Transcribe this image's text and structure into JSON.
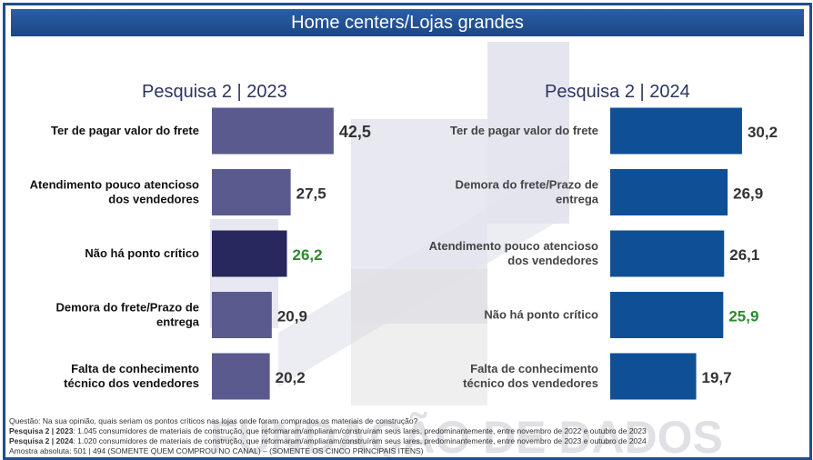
{
  "title": "Home centers/Lojas grandes",
  "watermark_text": "FUNDAÇÃO DE DADOS",
  "colors": {
    "bar_2023": "#5a5a8e",
    "bar_2023_highlight": "#28285e",
    "bar_2024": "#0f4f96",
    "value_text": "#333333",
    "value_highlight": "#2e8b2e",
    "title_bar": "#1f4e8c"
  },
  "chart_data": [
    {
      "type": "bar",
      "orientation": "horizontal",
      "title": "Pesquisa 2 | 2023",
      "categories": [
        "Ter de pagar valor do frete",
        "Atendimento pouco atencioso dos vendedores",
        "Não há ponto crítico",
        "Demora do frete/Prazo de entrega",
        "Falta de conhecimento técnico dos vendedores"
      ],
      "values": [
        42.5,
        27.5,
        26.2,
        20.9,
        20.2
      ],
      "labels": [
        "42,5",
        "27,5",
        "26,2",
        "20,9",
        "20,2"
      ],
      "highlight_index": 2
    },
    {
      "type": "bar",
      "orientation": "horizontal",
      "title": "Pesquisa 2 | 2024",
      "categories": [
        "Ter de pagar valor do frete",
        "Demora do frete/Prazo de entrega",
        "Atendimento pouco atencioso dos vendedores",
        "Não há ponto crítico",
        "Falta de conhecimento técnico dos vendedores"
      ],
      "values": [
        30.2,
        26.9,
        26.1,
        25.9,
        19.7
      ],
      "labels": [
        "30,2",
        "26,9",
        "26,1",
        "25,9",
        "19,7"
      ],
      "highlight_index": 3
    }
  ],
  "notes": {
    "question": "Questão: Na sua opinião, quais seriam os pontos críticos nas lojas onde foram comprados os materiais de construção?",
    "p2023_label": "Pesquisa 2 | 2023",
    "p2023_text": ": 1.045 consumidores de materiais de construção, que reformaram/ampliaram/construíram seus lares, predominantemente, entre novembro de 2022 e outubro de 2023",
    "p2024_label": "Pesquisa 2 | 2024",
    "p2024_text": ": 1.020 consumidores de materiais de construção, que reformaram/ampliaram/construíram seus lares, predominantemente, entre novembro de 2023 e outubro de 2024",
    "sample": "Amostra absoluta: 501 | 494  (SOMENTE QUEM COMPROU NO CANAL) – (SOMENTE OS CINCO PRINCIPAIS ITENS)"
  }
}
